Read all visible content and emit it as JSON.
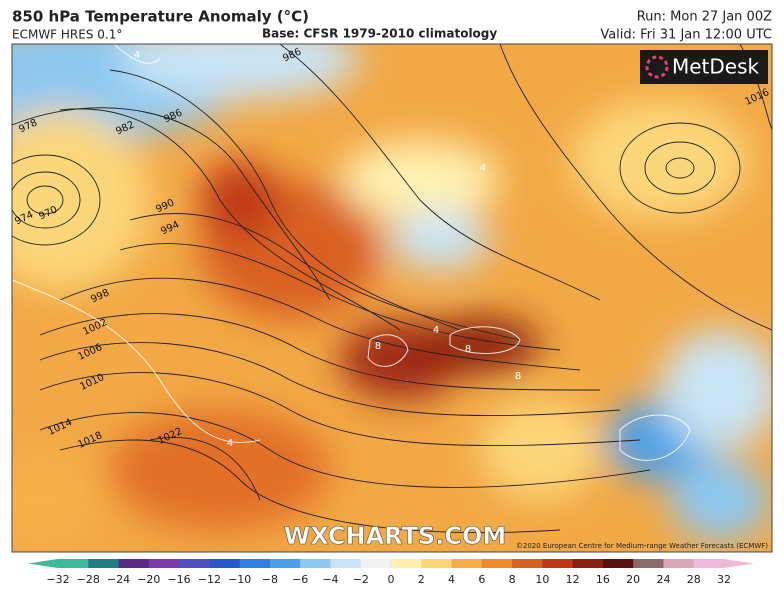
{
  "header": {
    "title": "850 hPa Temperature Anomaly (°C)",
    "model": "ECMWF HRES 0.1°",
    "base": "Base: CFSR 1979-2010 climatology",
    "run": "Run: Mon 27 Jan 00Z",
    "valid": "Valid: Fri 31 Jan 12:00 UTC"
  },
  "logo": "MetDesk",
  "watermark": "WXCHARTS.COM",
  "copyright": "©2020 European Centre for Medium-range Weather Forecasts (ECMWF)",
  "isobar_labels": [
    "978",
    "982",
    "986",
    "986",
    "970",
    "974",
    "990",
    "994",
    "998",
    "1002",
    "1006",
    "1010",
    "1014",
    "1018",
    "1022",
    "1016"
  ],
  "anomaly_labels": [
    "4",
    "8",
    "8",
    "8",
    "4",
    "4",
    "4"
  ],
  "colorbar": {
    "ticks": [
      "−32",
      "−28",
      "−24",
      "−20",
      "−16",
      "−12",
      "−10",
      "−8",
      "−6",
      "−4",
      "−2",
      "0",
      "2",
      "4",
      "6",
      "8",
      "10",
      "12",
      "16",
      "20",
      "24",
      "28",
      "32"
    ],
    "colors": [
      "#3cb89a",
      "#1f7f80",
      "#5a2a86",
      "#7a3aa8",
      "#5050c0",
      "#2456cc",
      "#2f7fe0",
      "#4aa0e8",
      "#8cc8f0",
      "#c8e4f4",
      "#f2f2f2",
      "#fff0b0",
      "#fcd77a",
      "#f6b04a",
      "#ee8c2c",
      "#d96020",
      "#c03818",
      "#8a2010",
      "#5a1010",
      "#8a6a6a",
      "#d8a8b8",
      "#f0b8d8"
    ]
  }
}
